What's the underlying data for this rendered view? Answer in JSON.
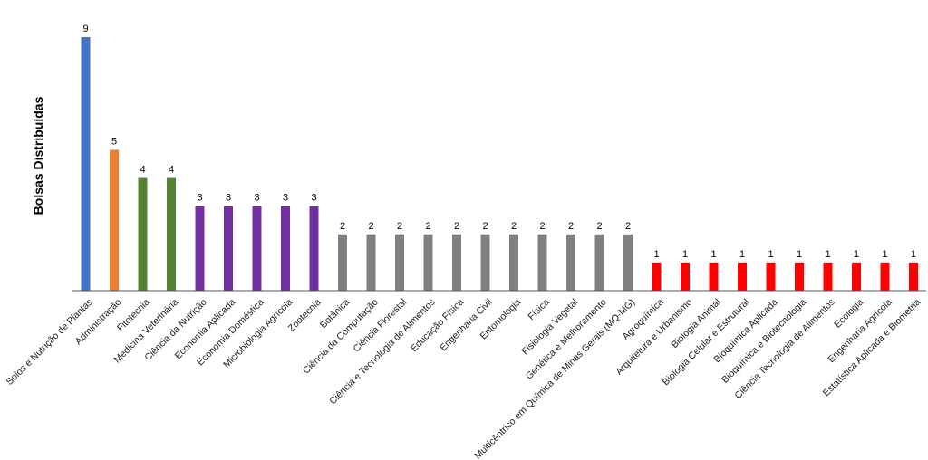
{
  "chart_data": {
    "type": "bar",
    "title": "",
    "xlabel": "",
    "ylabel": "Bolsas Distribuídas",
    "ylim": [
      0,
      9
    ],
    "grid": false,
    "legend": "none",
    "categories": [
      "Solos e Nutrição de Plantas",
      "Administração",
      "Fitotecnia",
      "Medicina Veterinária",
      "Ciência da Nutrição",
      "Economia Aplicada",
      "Economia Doméstica",
      "Microbiologia Agrícola",
      "Zootecnia",
      "Botânica",
      "Ciência da Computação",
      "Ciência Florestal",
      "Ciência e Tecnologia de Alimentos",
      "Educação Física",
      "Engenharia Civil",
      "Entomologia",
      "Física",
      "Fisiologia Vegetal",
      "Genética e Melhoramento",
      "Multicêntrico em Química de Minas Gerais (MQ-MG)",
      "Agroquímica",
      "Arquitetura e Urbanismo",
      "Biologia Animal",
      "Biologia Celular e Estrutural",
      "Bioquímica Aplicada",
      "Bioquímica e Biotecnologia",
      "Ciência Tecnologia de Alimentos",
      "Ecologia",
      "Engenharia Agrícola",
      "Estatística Aplicada e Biometria"
    ],
    "values": [
      9,
      5,
      4,
      4,
      3,
      3,
      3,
      3,
      3,
      2,
      2,
      2,
      2,
      2,
      2,
      2,
      2,
      2,
      2,
      2,
      1,
      1,
      1,
      1,
      1,
      1,
      1,
      1,
      1,
      1
    ],
    "colors": [
      "#4472C4",
      "#ED7D31",
      "#548235",
      "#548235",
      "#7030A0",
      "#7030A0",
      "#7030A0",
      "#7030A0",
      "#7030A0",
      "#808080",
      "#808080",
      "#808080",
      "#808080",
      "#808080",
      "#808080",
      "#808080",
      "#808080",
      "#808080",
      "#808080",
      "#808080",
      "#FF0000",
      "#FF0000",
      "#FF0000",
      "#FF0000",
      "#FF0000",
      "#FF0000",
      "#FF0000",
      "#FF0000",
      "#FF0000",
      "#FF0000"
    ]
  }
}
